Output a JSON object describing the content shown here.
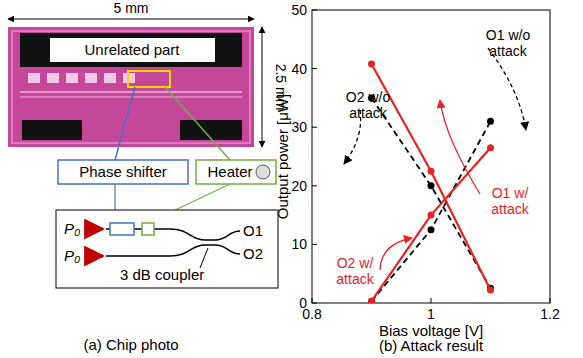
{
  "panel_a": {
    "title": "(a) Chip photo",
    "width_label": "5 mm",
    "height_label": "2.5 mm",
    "region_label": "Unrelated part",
    "phase_shifter": "Phase shifter",
    "heater": "Heater",
    "inputs": [
      "P₀",
      "P₀"
    ],
    "outputs": [
      "O1",
      "O2"
    ],
    "coupler": "3 dB coupler"
  },
  "chart_data": {
    "type": "line",
    "title": "(b) Attack result",
    "x_label": "Bias voltage [V]",
    "y_label": "Output power [μW]",
    "x": [
      0.9,
      1.0,
      1.1
    ],
    "xlim": [
      0.8,
      1.2
    ],
    "xticks": [
      0.8,
      1,
      1.2
    ],
    "ylim": [
      0,
      50
    ],
    "yticks": [
      0,
      10,
      20,
      30,
      40,
      50
    ],
    "series": [
      {
        "name": "O1 w/o attack",
        "color": "#000000",
        "line_style": "dashed",
        "marker": "circle",
        "values": [
          0.3,
          12.5,
          31
        ]
      },
      {
        "name": "O2 w/o attack",
        "color": "#000000",
        "line_style": "dashed",
        "marker": "circle",
        "values": [
          35,
          20,
          2.5
        ]
      },
      {
        "name": "O1 w/ attack",
        "color": "#e8231f",
        "line_style": "solid",
        "marker": "circle",
        "values": [
          0.3,
          15,
          26.5
        ]
      },
      {
        "name": "O2 w/ attack",
        "color": "#e8231f",
        "line_style": "solid",
        "marker": "circle",
        "values": [
          40.8,
          22.5,
          2.2
        ]
      }
    ]
  }
}
